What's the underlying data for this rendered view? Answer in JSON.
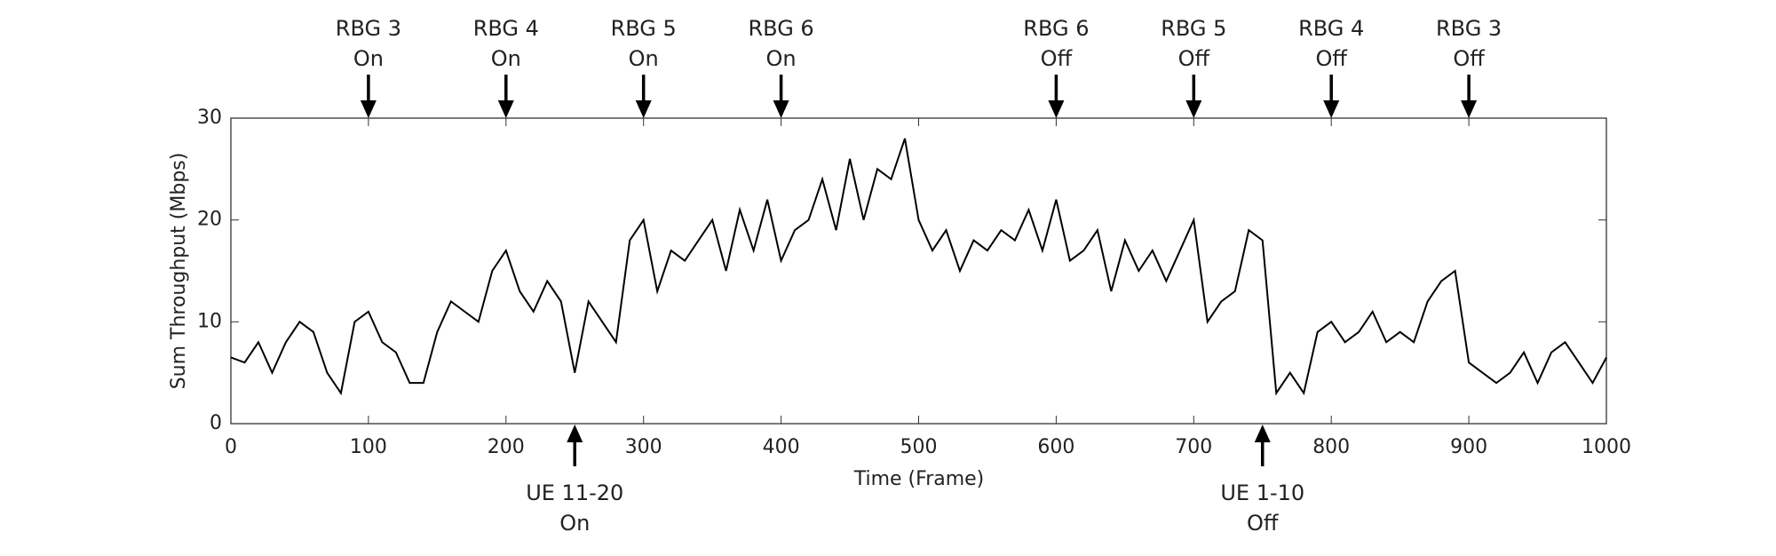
{
  "chart_data": {
    "type": "line",
    "xlabel": "Time (Frame)",
    "ylabel": "Sum Throughput (Mbps)",
    "xlim": [
      0,
      1000
    ],
    "xticks": [
      0,
      100,
      200,
      300,
      400,
      500,
      600,
      700,
      800,
      900,
      1000
    ],
    "ylim": [
      0,
      30
    ],
    "yticks": [
      0,
      10,
      20,
      30
    ],
    "series": [
      {
        "color": "#000000",
        "x": [
          0,
          10,
          20,
          30,
          40,
          50,
          60,
          70,
          80,
          90,
          100,
          110,
          120,
          130,
          140,
          150,
          160,
          170,
          180,
          190,
          200,
          210,
          220,
          230,
          240,
          250,
          260,
          270,
          280,
          290,
          300,
          310,
          320,
          330,
          340,
          350,
          360,
          370,
          380,
          390,
          400,
          410,
          420,
          430,
          440,
          450,
          460,
          470,
          480,
          490,
          500,
          510,
          520,
          530,
          540,
          550,
          560,
          570,
          580,
          590,
          600,
          610,
          620,
          630,
          640,
          650,
          660,
          670,
          680,
          690,
          700,
          710,
          720,
          730,
          740,
          750,
          760,
          770,
          780,
          790,
          800,
          810,
          820,
          830,
          840,
          850,
          860,
          870,
          880,
          890,
          900,
          910,
          920,
          930,
          940,
          950,
          960,
          970,
          980,
          990,
          1000
        ],
        "values": [
          6.5,
          6,
          8,
          5,
          8,
          10,
          9,
          5,
          3,
          10,
          11,
          8,
          7,
          4,
          4,
          9,
          12,
          11,
          10,
          15,
          17,
          13,
          11,
          14,
          12,
          5,
          12,
          10,
          8,
          18,
          20,
          13,
          17,
          16,
          18,
          20,
          15,
          21,
          17,
          22,
          16,
          19,
          20,
          24,
          19,
          26,
          20,
          25,
          24,
          28,
          20,
          17,
          19,
          15,
          18,
          17,
          19,
          18,
          21,
          17,
          22,
          16,
          17,
          19,
          13,
          18,
          15,
          17,
          14,
          17,
          20,
          10,
          12,
          13,
          19,
          18,
          3,
          5,
          3,
          9,
          10,
          8,
          9,
          11,
          8,
          9,
          8,
          12,
          14,
          15,
          6,
          5,
          4,
          5,
          7,
          4,
          7,
          8,
          6,
          4,
          6.5
        ]
      }
    ],
    "annotations": [
      {
        "x": 100,
        "position": "top",
        "label": [
          "RBG 3",
          "On"
        ]
      },
      {
        "x": 200,
        "position": "top",
        "label": [
          "RBG 4",
          "On"
        ]
      },
      {
        "x": 300,
        "position": "top",
        "label": [
          "RBG 5",
          "On"
        ]
      },
      {
        "x": 400,
        "position": "top",
        "label": [
          "RBG 6",
          "On"
        ]
      },
      {
        "x": 600,
        "position": "top",
        "label": [
          "RBG 6",
          "Off"
        ]
      },
      {
        "x": 700,
        "position": "top",
        "label": [
          "RBG 5",
          "Off"
        ]
      },
      {
        "x": 800,
        "position": "top",
        "label": [
          "RBG 4",
          "Off"
        ]
      },
      {
        "x": 900,
        "position": "top",
        "label": [
          "RBG 3",
          "Off"
        ]
      },
      {
        "x": 250,
        "position": "bottom",
        "label": [
          "UE 11-20",
          "On"
        ]
      },
      {
        "x": 750,
        "position": "bottom",
        "label": [
          "UE 1-10",
          "Off"
        ]
      }
    ]
  }
}
